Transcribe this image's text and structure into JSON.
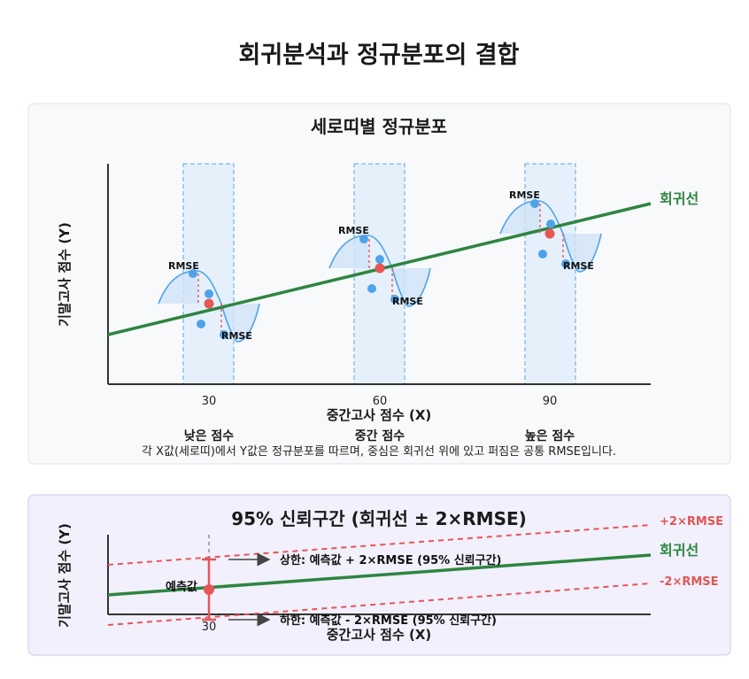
{
  "title": "회귀분석과 정규분포의 결합",
  "panel1": {
    "title": "세로띠별 정규분포",
    "ylabel": "기말고사 점수 (Y)",
    "xlabel": "중간고사 점수 (X)",
    "ticks": [
      "30",
      "60",
      "90"
    ],
    "categories": [
      "낮은 점수",
      "중간 점수",
      "높은 점수"
    ],
    "line_label": "회귀선",
    "rmse_label": "RMSE",
    "note": "각 X값(세로띠)에서 Y값은 정규분포를 따르며, 중심은 회귀선 위에 있고 퍼짐은 공통 RMSE입니다."
  },
  "panel2": {
    "title": "95% 신뢰구간 (회귀선 ± 2×RMSE)",
    "ylabel": "기말고사 점수 (Y)",
    "xlabel": "중간고사 점수 (X)",
    "tick": "30",
    "upper_label": "+2×RMSE",
    "line_label": "회귀선",
    "lower_label": "-2×RMSE",
    "pred_label": "예측값",
    "upper_note": "상한: 예측값 + 2×RMSE (95% 신뢰구간)",
    "lower_note": "하한: 예측값 - 2×RMSE (95% 신뢰구간)"
  },
  "colors": {
    "regression": "#2e8540",
    "point": "#4ea3e8",
    "center": "#e85555",
    "band": "#e8f1fb",
    "interval": "#e85555"
  }
}
